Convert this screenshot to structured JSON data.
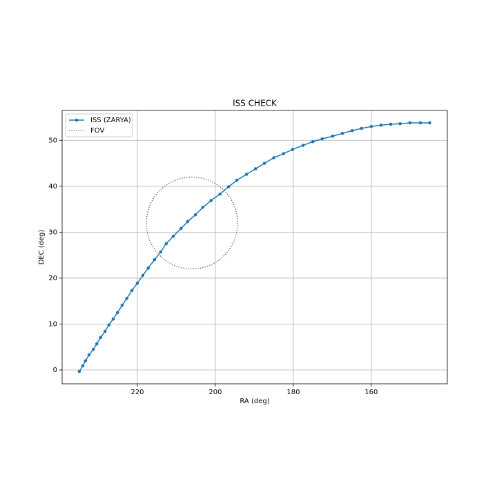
{
  "chart_data": {
    "type": "line",
    "title": "ISS CHECK",
    "x_label": "RA (deg)",
    "y_label": "DEC (deg)",
    "xlim": [
      239.3,
      140.5
    ],
    "ylim": [
      -3.0,
      56.5
    ],
    "xticks": [
      220,
      200,
      180,
      160
    ],
    "yticks": [
      0,
      10,
      20,
      30,
      40,
      50
    ],
    "grid": true,
    "legend": "upper left",
    "series": [
      {
        "name": "ISS (ZARYA)",
        "color": "#1f77b4",
        "marker": true,
        "x": [
          234.9,
          234.0,
          233.3,
          232.4,
          231.3,
          230.4,
          229.4,
          228.3,
          227.3,
          226.2,
          225.1,
          223.9,
          222.7,
          221.4,
          220.0,
          218.6,
          217.2,
          215.6,
          214.0,
          212.6,
          210.8,
          208.8,
          207.1,
          205.1,
          203.2,
          201.1,
          198.8,
          196.6,
          194.5,
          192.0,
          189.7,
          187.4,
          185.0,
          182.5,
          180.2,
          177.5,
          175.0,
          172.6,
          169.9,
          167.4,
          164.9,
          162.5,
          160.0,
          157.5,
          155.0,
          152.6,
          150.1,
          147.4,
          145.0
        ],
        "values": [
          -0.3,
          0.9,
          2.0,
          3.3,
          4.5,
          5.7,
          7.1,
          8.4,
          9.8,
          11.1,
          12.5,
          14.1,
          15.6,
          17.3,
          18.9,
          20.6,
          22.2,
          24.0,
          25.7,
          27.5,
          29.1,
          30.8,
          32.3,
          33.8,
          35.4,
          36.9,
          38.3,
          39.9,
          41.3,
          42.6,
          43.8,
          45.0,
          46.2,
          47.1,
          48.0,
          48.9,
          49.7,
          50.3,
          50.9,
          51.5,
          52.1,
          52.6,
          53.0,
          53.3,
          53.5,
          53.6,
          53.8,
          53.8,
          53.8
        ]
      },
      {
        "name": "FOV",
        "color": "#555555",
        "shape": "ellipse",
        "center_x": 206.0,
        "center_y": 32.0,
        "radius_x": 11.7,
        "radius_y": 10.0
      }
    ]
  }
}
